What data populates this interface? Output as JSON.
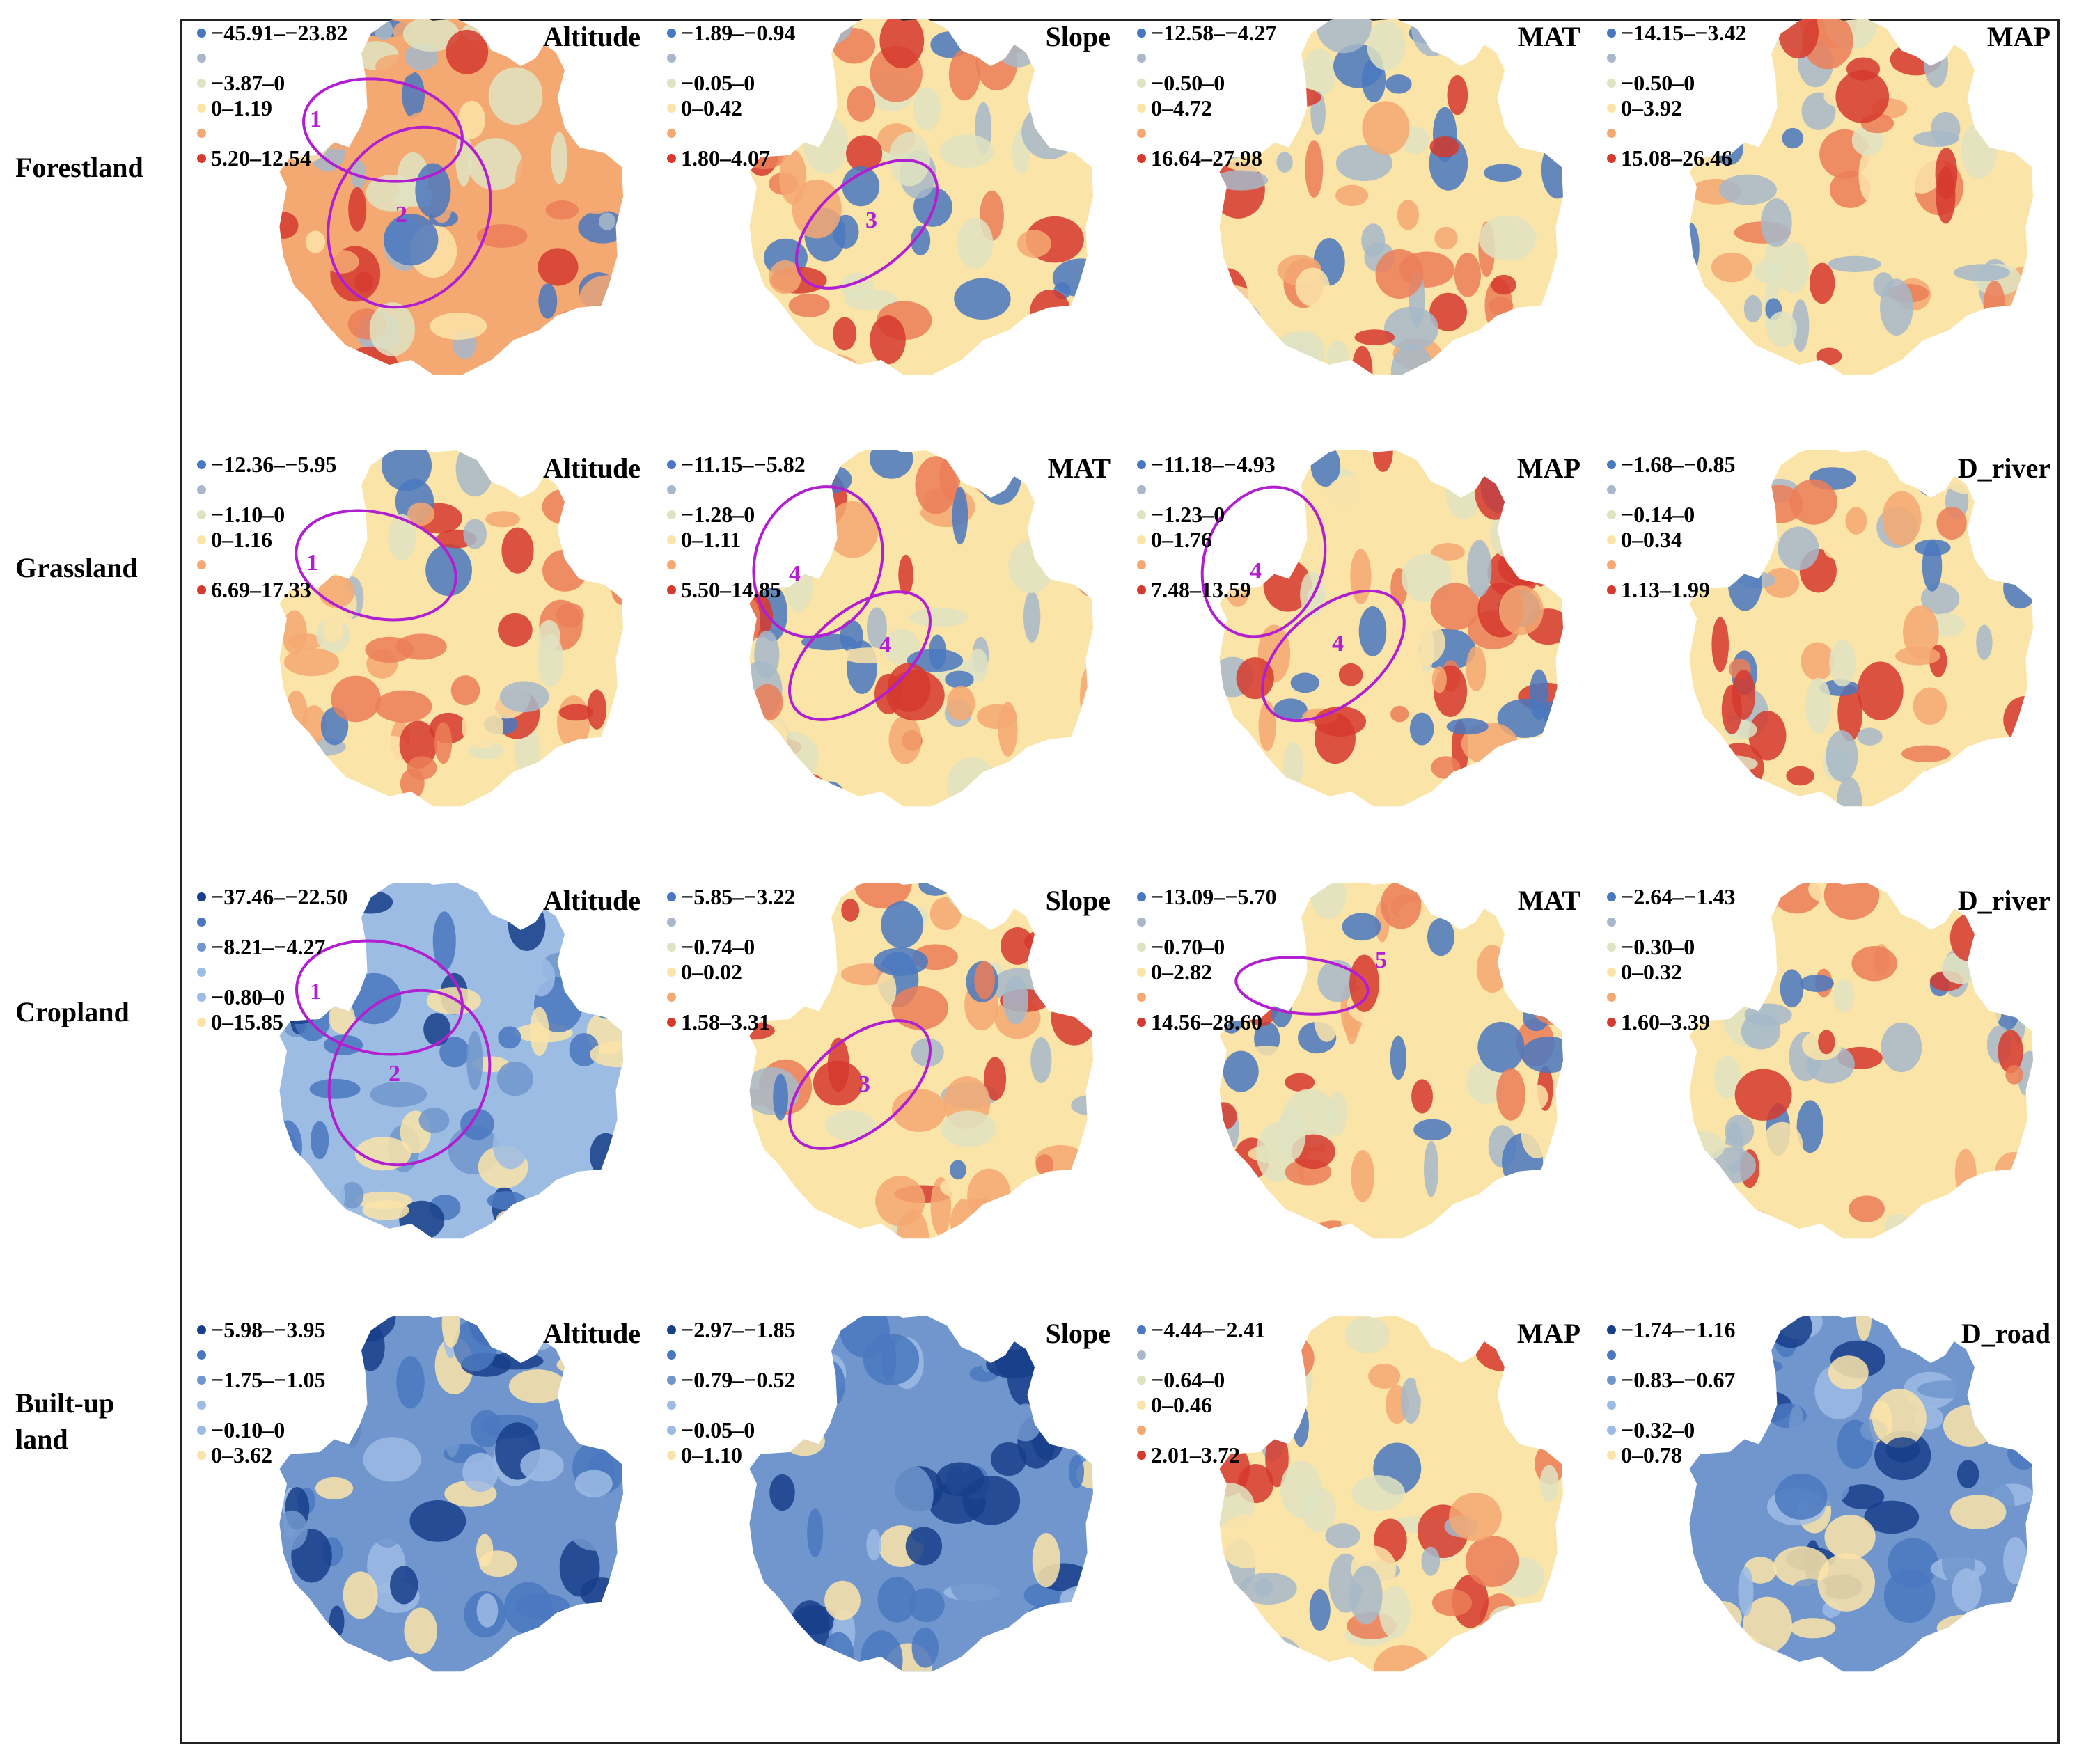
{
  "colors": {
    "dark_blue": "#173f8a",
    "blue": "#4a78bf",
    "mid_blue": "#7096cd",
    "light_blue": "#9cbce4",
    "grey_blue": "#a6b8c9",
    "pale_green": "#dfe3c2",
    "cream": "#fbe4a8",
    "light_orange": "#f4a872",
    "orange": "#eb7e58",
    "red": "#d53a2e",
    "ellipse": "#b21fd1"
  },
  "rows": [
    {
      "label": "Forestland",
      "panels": [
        {
          "var": "Altitude",
          "legend": [
            "−45.91–−23.82",
            "",
            "−3.87–0",
            "0–1.19",
            "",
            "5.20–12.54"
          ],
          "ellipses": [
            "1",
            "2"
          ]
        },
        {
          "var": "Slope",
          "legend": [
            "−1.89–−0.94",
            "",
            "−0.05–0",
            "0–0.42",
            "",
            "1.80–4.07"
          ],
          "ellipses": [
            "3"
          ]
        },
        {
          "var": "MAT",
          "legend": [
            "−12.58–−4.27",
            "",
            "−0.50–0",
            "0–4.72",
            "",
            "16.64–27.98"
          ],
          "ellipses": []
        },
        {
          "var": "MAP",
          "legend": [
            "−14.15–−3.42",
            "",
            "−0.50–0",
            "0–3.92",
            "",
            "15.08–26.46"
          ],
          "ellipses": []
        }
      ]
    },
    {
      "label": "Grassland",
      "panels": [
        {
          "var": "Altitude",
          "legend": [
            "−12.36–−5.95",
            "",
            "−1.10–0",
            "0–1.16",
            "",
            "6.69–17.33"
          ],
          "ellipses": [
            "1"
          ]
        },
        {
          "var": "MAT",
          "legend": [
            "−11.15–−5.82",
            "",
            "−1.28–0",
            "0–1.11",
            "",
            "5.50–14.85"
          ],
          "ellipses": [
            "4",
            "4"
          ]
        },
        {
          "var": "MAP",
          "legend": [
            "−11.18–−4.93",
            "",
            "−1.23–0",
            "0–1.76",
            "",
            "7.48–13.59"
          ],
          "ellipses": [
            "4",
            "4"
          ]
        },
        {
          "var": "D_river",
          "legend": [
            "−1.68–−0.85",
            "",
            "−0.14–0",
            "0–0.34",
            "",
            "1.13–1.99"
          ],
          "ellipses": []
        }
      ]
    },
    {
      "label": "Cropland",
      "panels": [
        {
          "var": "Altitude",
          "legend": [
            "−37.46–−22.50",
            "",
            "−8.21–−4.27",
            "",
            "−0.80–0",
            "0–15.85"
          ],
          "ellipses": [
            "1",
            "2"
          ]
        },
        {
          "var": "Slope",
          "legend": [
            "−5.85–−3.22",
            "",
            "−0.74–0",
            "0–0.02",
            "",
            "1.58–3.31"
          ],
          "ellipses": [
            "3"
          ]
        },
        {
          "var": "MAT",
          "legend": [
            "−13.09–−5.70",
            "",
            "−0.70–0",
            "0–2.82",
            "",
            "14.56–28.60"
          ],
          "ellipses": [
            "5"
          ]
        },
        {
          "var": "D_river",
          "legend": [
            "−2.64–−1.43",
            "",
            "−0.30–0",
            "0–0.32",
            "",
            "1.60–3.39"
          ],
          "ellipses": []
        }
      ]
    },
    {
      "label": "Built-up land",
      "panels": [
        {
          "var": "Altitude",
          "legend": [
            "−5.98–−3.95",
            "",
            "−1.75–−1.05",
            "",
            "−0.10–0",
            "0–3.62"
          ],
          "ellipses": []
        },
        {
          "var": "Slope",
          "legend": [
            "−2.97–−1.85",
            "",
            "−0.79–−0.52",
            "",
            "−0.05–0",
            "0–1.10"
          ],
          "ellipses": []
        },
        {
          "var": "MAP",
          "legend": [
            "−4.44–−2.41",
            "",
            "−0.64–0",
            "0–0.46",
            "",
            "2.01–3.72"
          ],
          "ellipses": []
        },
        {
          "var": "D_road",
          "legend": [
            "−1.74–−1.16",
            "",
            "−0.83–−0.67",
            "",
            "−0.32–0",
            "0–0.78"
          ],
          "ellipses": []
        }
      ]
    }
  ]
}
